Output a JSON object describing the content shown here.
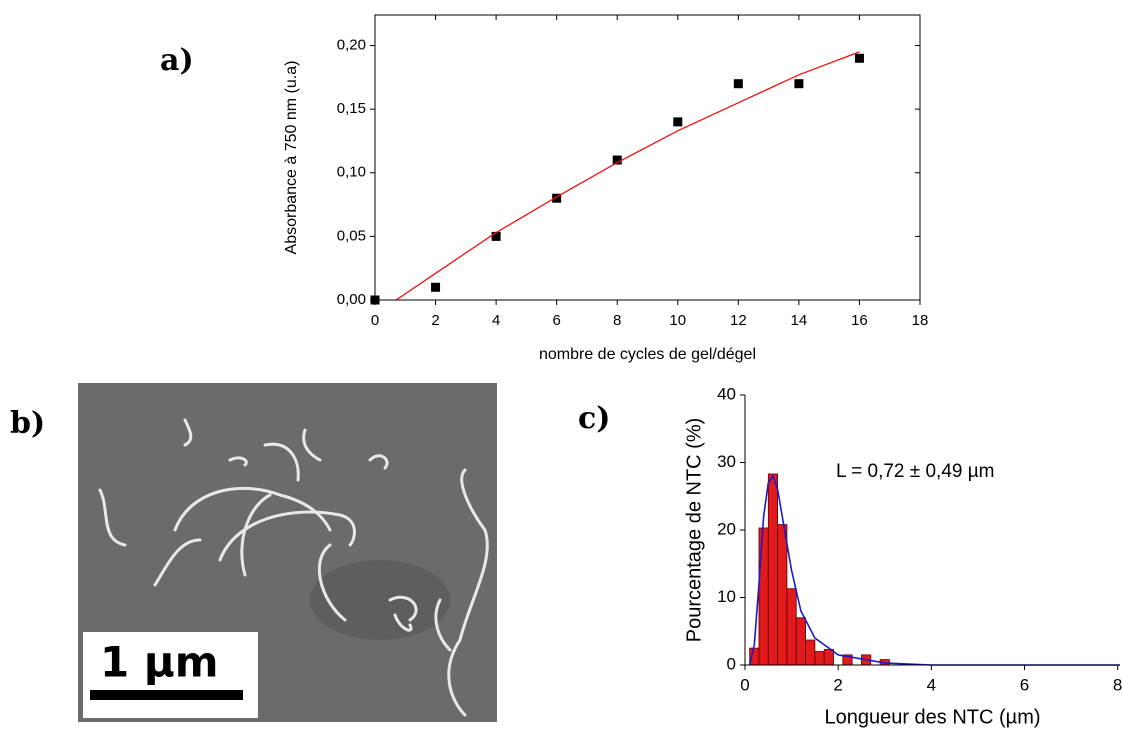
{
  "chart_data": [
    {
      "type": "scatter",
      "panel": "a)",
      "xlabel": "nombre de cycles de gel/dégel",
      "ylabel": "Absorbance à 750 nm (u.a)",
      "xlim": [
        0,
        18
      ],
      "xticks": [
        0,
        2,
        4,
        6,
        8,
        10,
        12,
        14,
        16,
        18
      ],
      "ylim": [
        0,
        0.224
      ],
      "yticks": [
        {
          "value": 0,
          "label": "0,00"
        },
        {
          "value": 0.05,
          "label": "0,05"
        },
        {
          "value": 0.1,
          "label": "0,10"
        },
        {
          "value": 0.15,
          "label": "0,15"
        },
        {
          "value": 0.2,
          "label": "0,20"
        }
      ],
      "series": [
        {
          "style": "markers",
          "color": "#000000",
          "x": [
            0,
            2,
            4,
            6,
            8,
            10,
            12,
            14,
            16
          ],
          "values": [
            0,
            0.01,
            0.05,
            0.08,
            0.11,
            0.14,
            0.17,
            0.17,
            0.19
          ]
        },
        {
          "style": "line",
          "color": "#ee1111",
          "x": [
            0.7,
            2,
            4,
            6,
            8,
            10,
            12,
            14,
            16
          ],
          "values": [
            0,
            0.021,
            0.053,
            0.081,
            0.108,
            0.133,
            0.155,
            0.177,
            0.195
          ]
        }
      ]
    },
    {
      "type": "histogram",
      "panel": "c)",
      "xlabel": "Longueur des NTC (µm)",
      "ylabel": "Pourcentage de NTC (%)",
      "annotation": "L = 0,72 ± 0,49 µm",
      "xlim": [
        0,
        8.05
      ],
      "xticks": [
        0,
        2,
        4,
        6,
        8
      ],
      "ylim": [
        0,
        40
      ],
      "yticks": [
        0,
        10,
        20,
        30,
        40
      ],
      "color": "#e31a1c",
      "bins": [
        0.1,
        0.3,
        0.5,
        0.7,
        0.9,
        1.1,
        1.3,
        1.5,
        1.7,
        1.9,
        2.1,
        2.3,
        2.5,
        2.7,
        2.9,
        3.1
      ],
      "values": [
        2.5,
        20.3,
        28.3,
        20.8,
        11.3,
        7,
        3.7,
        2,
        2.3,
        0,
        1.5,
        0,
        1.5,
        0,
        0.8
      ],
      "fit": {
        "color": "#1a1acc",
        "x": [
          0.1,
          0.2,
          0.3,
          0.4,
          0.5,
          0.6,
          0.7,
          0.8,
          1.0,
          1.2,
          1.5,
          2,
          3,
          4,
          6,
          8.05
        ],
        "values": [
          0,
          3,
          12,
          22,
          27,
          28,
          26,
          22,
          14,
          8,
          4,
          1.5,
          0.3,
          0,
          0,
          0
        ]
      }
    }
  ],
  "image": {
    "panel": "b)",
    "scale_bar": "1 µm"
  }
}
